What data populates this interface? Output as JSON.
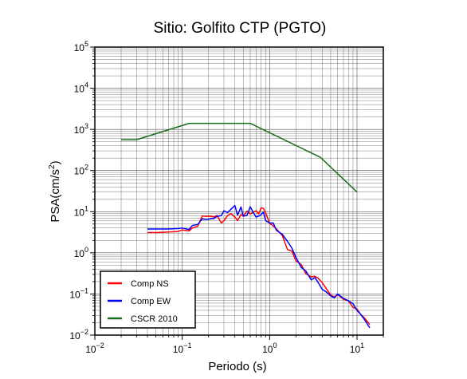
{
  "chart_data": {
    "type": "line",
    "title": "Sitio: Golfito CTP (PGTO)",
    "xlabel": "Periodo (s)",
    "ylabel": "PSA(cm/s",
    "ylabel_superscript": "2",
    "ylabel_suffix": ")",
    "xscale": "log",
    "yscale": "log",
    "xlim": [
      0.01,
      20
    ],
    "ylim": [
      0.01,
      100000
    ],
    "grid": true,
    "legend_position": "bottom-left",
    "x_ticks": [
      {
        "base": "10",
        "exp": "−2"
      },
      {
        "base": "10",
        "exp": "−1"
      },
      {
        "base": "10",
        "exp": "0"
      },
      {
        "base": "10",
        "exp": "1"
      }
    ],
    "y_ticks": [
      {
        "base": "10",
        "exp": "−2"
      },
      {
        "base": "10",
        "exp": "−1"
      },
      {
        "base": "10",
        "exp": "0"
      },
      {
        "base": "10",
        "exp": "1"
      },
      {
        "base": "10",
        "exp": "2"
      },
      {
        "base": "10",
        "exp": "3"
      },
      {
        "base": "10",
        "exp": "4"
      },
      {
        "base": "10",
        "exp": "5"
      }
    ],
    "series": [
      {
        "name": "Comp NS",
        "color": "#ff0000",
        "x": [
          0.04,
          0.05,
          0.07,
          0.09,
          0.1,
          0.12,
          0.13,
          0.15,
          0.17,
          0.19,
          0.21,
          0.23,
          0.25,
          0.28,
          0.3,
          0.33,
          0.36,
          0.4,
          0.43,
          0.47,
          0.5,
          0.55,
          0.6,
          0.65,
          0.7,
          0.75,
          0.8,
          0.85,
          0.9,
          1.0,
          1.1,
          1.2,
          1.4,
          1.6,
          1.8,
          2.0,
          2.3,
          2.6,
          3.0,
          3.3,
          3.6,
          4.0,
          4.5,
          5.0,
          5.5,
          6.0,
          7.0,
          8.0,
          9.0,
          10.0,
          11.0,
          12.0,
          14.0
        ],
        "y": [
          3.1,
          3.1,
          3.2,
          3.3,
          3.6,
          3.4,
          4.0,
          4.4,
          7.9,
          7.7,
          7.8,
          7.4,
          8.1,
          5.3,
          6.0,
          8.0,
          9.0,
          7.4,
          6.1,
          8.5,
          7.7,
          10.3,
          8.8,
          9.7,
          10.5,
          8.8,
          12.4,
          12.0,
          9.4,
          5.2,
          4.5,
          3.8,
          2.6,
          1.2,
          1.1,
          0.64,
          0.52,
          0.31,
          0.26,
          0.27,
          0.24,
          0.19,
          0.13,
          0.095,
          0.085,
          0.097,
          0.074,
          0.068,
          0.047,
          0.043,
          0.032,
          0.027,
          0.018
        ]
      },
      {
        "name": "Comp EW",
        "color": "#0000ff",
        "x": [
          0.04,
          0.05,
          0.07,
          0.09,
          0.1,
          0.12,
          0.13,
          0.15,
          0.17,
          0.19,
          0.21,
          0.23,
          0.25,
          0.28,
          0.3,
          0.33,
          0.36,
          0.4,
          0.43,
          0.47,
          0.5,
          0.55,
          0.6,
          0.65,
          0.7,
          0.75,
          0.8,
          0.85,
          0.9,
          1.0,
          1.1,
          1.2,
          1.4,
          1.6,
          1.8,
          2.0,
          2.3,
          2.6,
          3.0,
          3.3,
          3.6,
          4.0,
          4.5,
          5.0,
          5.5,
          6.0,
          7.0,
          8.0,
          9.0,
          10.0,
          11.0,
          12.0,
          14.0
        ],
        "y": [
          3.8,
          3.8,
          3.8,
          3.9,
          4.0,
          3.7,
          4.6,
          4.9,
          6.7,
          6.4,
          6.7,
          6.8,
          7.7,
          8.0,
          10.5,
          9.5,
          11.4,
          14.1,
          8.2,
          13.0,
          7.8,
          8.1,
          13.2,
          9.6,
          7.4,
          7.8,
          8.5,
          9.8,
          6.1,
          5.3,
          5.3,
          3.5,
          2.8,
          1.9,
          1.3,
          0.78,
          0.44,
          0.36,
          0.22,
          0.25,
          0.19,
          0.13,
          0.11,
          0.09,
          0.08,
          0.1,
          0.078,
          0.068,
          0.058,
          0.04,
          0.032,
          0.025,
          0.015
        ]
      },
      {
        "name": "CSCR 2010",
        "color": "#1a6d1a",
        "x": [
          0.02,
          0.03,
          0.12,
          0.6,
          3.8,
          10.0
        ],
        "y": [
          560,
          560,
          1400,
          1400,
          210,
          30
        ]
      }
    ]
  }
}
